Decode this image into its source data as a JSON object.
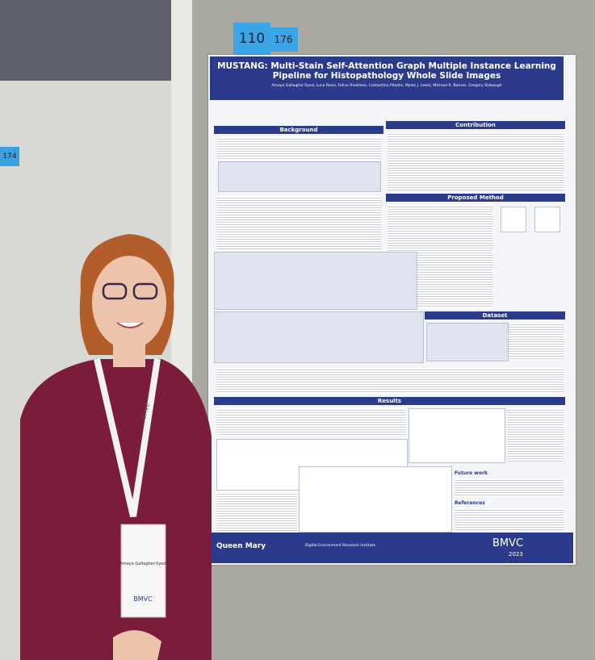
{
  "board_numbers": [
    "110",
    "176"
  ],
  "side_board_number": "174",
  "poster": {
    "title_lines": [
      "MUSTANG: Multi-Stain Self-Attention Graph Multiple Instance Learning",
      "Pipeline for Histopathology Whole Slide Images"
    ],
    "authors": "Amaya Gallagher-Syed, Luca Rossi, Felice Rivellese, Costantino Pitzalis, Myles J. Lewis, Michael R. Barnes, Gregory Slabaugh",
    "sections": [
      "Background",
      "Contribution",
      "Proposed Method",
      "Dataset",
      "Results"
    ],
    "subsections": [
      "Future work",
      "References"
    ],
    "footer": [
      "Queen Mary",
      "Digital Environment Research Institute",
      "BMVC",
      "2023"
    ]
  },
  "badge": {
    "name": "Amaya Gallagher-Syed",
    "logo": "BMVC"
  },
  "lanyard": "BMVC"
}
